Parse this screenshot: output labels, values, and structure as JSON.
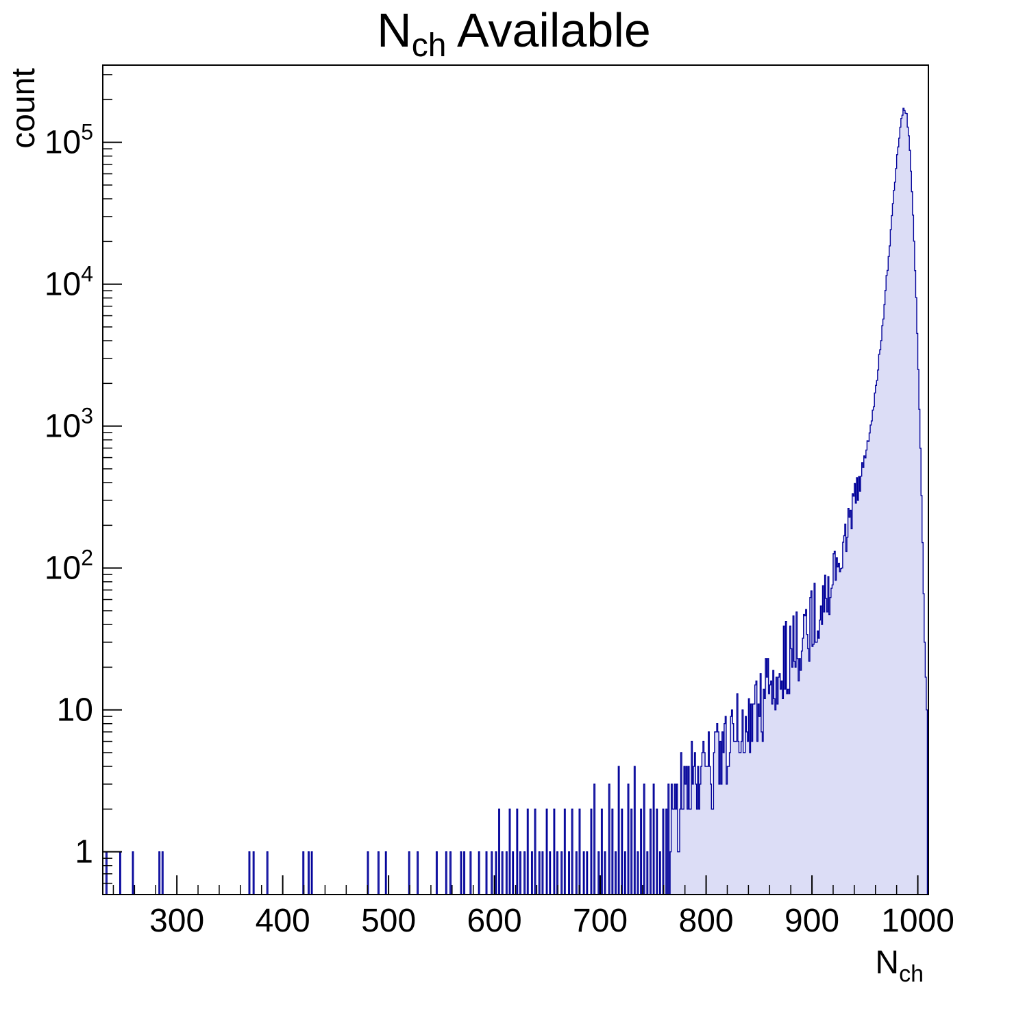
{
  "title": {
    "main": "N",
    "sub": "ch",
    "rest": " Available"
  },
  "x_axis": {
    "label_main": "N",
    "label_sub": "ch",
    "min": 230,
    "max": 1010,
    "major_ticks": [
      300,
      400,
      500,
      600,
      700,
      800,
      900,
      1000
    ],
    "minor_step": 20
  },
  "y_axis": {
    "label": "count",
    "scale": "log",
    "min": 0.5,
    "max": 350000,
    "decades": [
      1,
      10,
      100,
      1000,
      10000,
      100000
    ]
  },
  "style": {
    "line_color": "#000099",
    "fill_color": "#dcddf6",
    "frame_color": "#000000",
    "background": "#ffffff"
  },
  "chart_data": {
    "type": "bar",
    "subtype": "histogram",
    "title": "N_ch Available",
    "xlabel": "N_ch",
    "ylabel": "count",
    "y_scale": "log",
    "x_range": [
      230,
      1010
    ],
    "bin_width": 1,
    "ylim": [
      0.5,
      350000
    ],
    "peak": {
      "x": 986,
      "count": 170000
    },
    "sparse_spikes": [
      [
        233,
        1
      ],
      [
        246,
        1
      ],
      [
        258,
        1
      ],
      [
        283,
        1
      ],
      [
        286,
        1
      ],
      [
        368,
        1
      ],
      [
        372,
        1
      ],
      [
        385,
        1
      ],
      [
        419,
        1
      ],
      [
        424,
        1
      ],
      [
        427,
        1
      ],
      [
        480,
        1
      ],
      [
        490,
        1
      ],
      [
        497,
        1
      ],
      [
        519,
        1
      ],
      [
        527,
        1
      ],
      [
        545,
        1
      ],
      [
        554,
        1
      ],
      [
        558,
        1
      ],
      [
        568,
        1
      ],
      [
        571,
        1
      ],
      [
        577,
        1
      ],
      [
        585,
        1
      ],
      [
        592,
        1
      ],
      [
        597,
        1
      ],
      [
        601,
        1
      ],
      [
        604,
        2
      ],
      [
        607,
        1
      ],
      [
        611,
        1
      ],
      [
        614,
        2
      ],
      [
        617,
        1
      ],
      [
        621,
        2
      ],
      [
        624,
        1
      ],
      [
        628,
        1
      ],
      [
        631,
        2
      ],
      [
        635,
        1
      ],
      [
        638,
        2
      ],
      [
        642,
        1
      ],
      [
        645,
        1
      ],
      [
        649,
        2
      ],
      [
        652,
        1
      ],
      [
        656,
        2
      ],
      [
        659,
        1
      ],
      [
        663,
        1
      ],
      [
        666,
        2
      ],
      [
        670,
        1
      ],
      [
        673,
        2
      ],
      [
        677,
        1
      ],
      [
        680,
        2
      ],
      [
        684,
        1
      ],
      [
        687,
        1
      ],
      [
        691,
        2
      ],
      [
        694,
        3
      ],
      [
        698,
        1
      ],
      [
        701,
        2
      ],
      [
        704,
        1
      ],
      [
        708,
        3
      ],
      [
        711,
        2
      ],
      [
        714,
        1
      ],
      [
        717,
        4
      ],
      [
        720,
        2
      ],
      [
        723,
        1
      ],
      [
        726,
        3
      ],
      [
        729,
        2
      ],
      [
        732,
        4
      ],
      [
        735,
        1
      ],
      [
        738,
        2
      ],
      [
        741,
        3
      ],
      [
        744,
        1
      ],
      [
        747,
        2
      ],
      [
        750,
        3
      ],
      [
        753,
        2
      ],
      [
        756,
        1
      ],
      [
        759,
        2
      ],
      [
        762,
        2
      ],
      [
        764,
        3
      ]
    ],
    "continuous_start": 766,
    "envelope": [
      [
        766,
        2
      ],
      [
        772,
        2
      ],
      [
        778,
        3
      ],
      [
        786,
        3
      ],
      [
        794,
        3
      ],
      [
        802,
        4
      ],
      [
        810,
        4
      ],
      [
        818,
        5
      ],
      [
        826,
        6
      ],
      [
        834,
        7
      ],
      [
        842,
        9
      ],
      [
        850,
        11
      ],
      [
        858,
        14
      ],
      [
        866,
        17
      ],
      [
        874,
        21
      ],
      [
        882,
        26
      ],
      [
        890,
        32
      ],
      [
        898,
        40
      ],
      [
        906,
        52
      ],
      [
        914,
        68
      ],
      [
        922,
        95
      ],
      [
        930,
        150
      ],
      [
        938,
        260
      ],
      [
        944,
        400
      ],
      [
        948,
        500
      ],
      [
        954,
        900
      ],
      [
        960,
        1800
      ],
      [
        966,
        5000
      ],
      [
        972,
        16000
      ],
      [
        978,
        55000
      ],
      [
        983,
        130000
      ],
      [
        986,
        170000
      ],
      [
        989,
        155000
      ],
      [
        992,
        90000
      ],
      [
        994,
        45000
      ],
      [
        996,
        20000
      ],
      [
        998,
        8000
      ],
      [
        1000,
        2500
      ],
      [
        1002,
        700
      ],
      [
        1004,
        150
      ],
      [
        1006,
        30
      ],
      [
        1008,
        10
      ]
    ],
    "noise": {
      "seed": 987654321,
      "round_floor_until": 940,
      "amp_anchors": [
        [
          766,
          0.32
        ],
        [
          880,
          0.3
        ],
        [
          920,
          0.2
        ],
        [
          945,
          0.1
        ],
        [
          958,
          0.04
        ],
        [
          1010,
          0
        ]
      ]
    }
  }
}
